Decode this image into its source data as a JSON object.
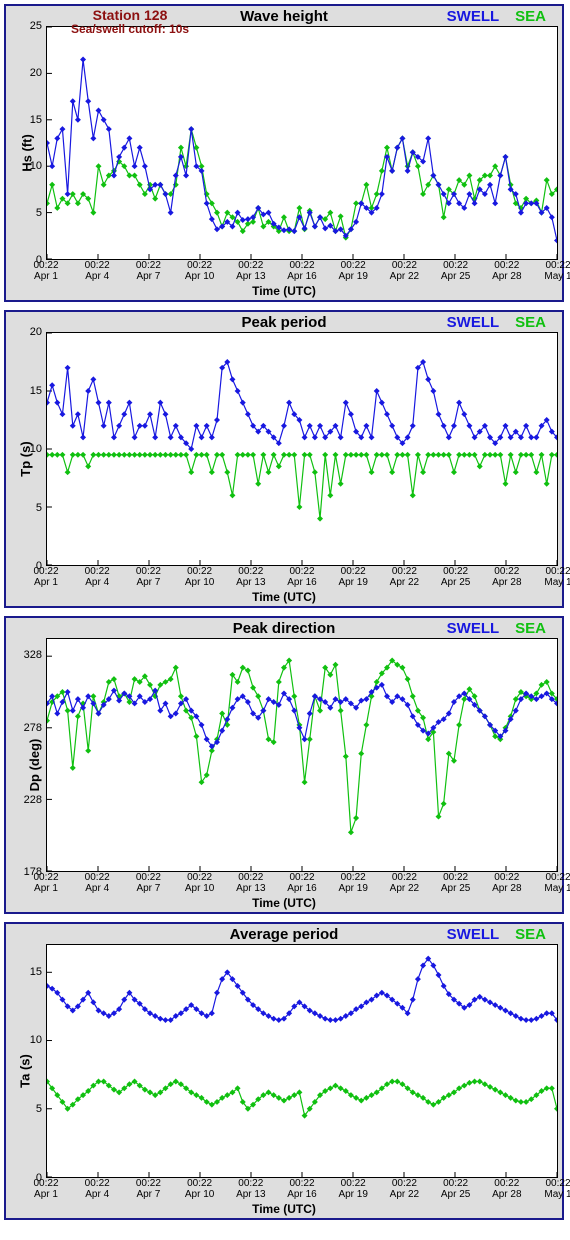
{
  "global": {
    "station_title": "Station 128",
    "station_sub": "Sea/swell cutoff: 10s",
    "legend_swell": "SWELL",
    "legend_sea": "SEA",
    "xlabel": "Time (UTC)",
    "xticks": [
      {
        "t": "00:22",
        "d": "Apr 1"
      },
      {
        "t": "00:22",
        "d": "Apr 4"
      },
      {
        "t": "00:22",
        "d": "Apr 7"
      },
      {
        "t": "00:22",
        "d": "Apr 10"
      },
      {
        "t": "00:22",
        "d": "Apr 13"
      },
      {
        "t": "00:22",
        "d": "Apr 16"
      },
      {
        "t": "00:22",
        "d": "Apr 19"
      },
      {
        "t": "00:22",
        "d": "Apr 22"
      },
      {
        "t": "00:22",
        "d": "Apr 25"
      },
      {
        "t": "00:22",
        "d": "Apr 28"
      },
      {
        "t": "00:22",
        "d": "May 1"
      }
    ],
    "colors": {
      "swell": "#1818e0",
      "sea": "#10c010",
      "panel_bg": "#dedede",
      "plot_bg": "#ffffff",
      "border": "#1a1a8c",
      "text": "#000000",
      "station": "#8c1010"
    },
    "series_style": {
      "marker": "diamond",
      "marker_size": 3,
      "line_width": 1.2
    }
  },
  "panels": [
    {
      "id": "hs",
      "title": "Wave height",
      "ylabel": "Hs (ft)",
      "ylim": [
        0,
        25
      ],
      "yticks": [
        0,
        5,
        10,
        15,
        20,
        25
      ],
      "show_station": true,
      "swell": [
        12.5,
        10,
        13,
        14,
        7,
        17,
        15,
        21.5,
        17,
        13,
        16,
        15,
        14,
        9,
        11,
        12,
        13,
        10,
        12,
        10,
        7.5,
        8,
        8,
        7,
        5,
        9,
        11,
        9,
        14,
        10,
        9.5,
        6,
        4.3,
        3.2,
        3.5,
        4,
        3.5,
        5,
        4.2,
        4.3,
        4.5,
        5.5,
        4.8,
        5,
        3.8,
        3.4,
        3.1,
        3.2,
        3,
        4.5,
        3.3,
        5,
        3.5,
        4.5,
        3.3,
        3.6,
        3,
        3.2,
        2.5,
        3.2,
        4,
        6,
        5.5,
        5,
        5.5,
        7,
        11,
        9.5,
        12,
        13,
        9.5,
        11.5,
        11,
        10.5,
        13,
        9,
        8,
        7,
        6,
        7,
        6,
        5.5,
        7,
        6,
        7.5,
        7,
        8,
        6,
        9,
        11,
        7.5,
        7,
        5,
        6,
        6,
        6,
        5,
        5.5,
        4.5,
        2
      ],
      "sea": [
        6,
        8,
        5.5,
        6.5,
        6,
        7,
        6,
        7,
        6.5,
        5,
        10,
        8,
        9,
        9.5,
        10.5,
        10,
        9,
        9,
        8,
        7,
        8,
        6.5,
        8,
        7,
        7,
        8,
        12,
        10,
        14,
        12,
        10,
        7,
        6,
        5,
        3.5,
        5,
        4.5,
        4,
        3,
        3.8,
        4,
        5.5,
        3.5,
        4,
        3.5,
        3,
        4.5,
        3,
        3,
        5.5,
        3.2,
        5.2,
        3.5,
        4.5,
        4.3,
        5,
        3,
        4.6,
        2.3,
        3.2,
        6,
        6,
        8,
        5.5,
        7,
        9.5,
        12,
        9.5,
        12,
        13,
        10,
        11.5,
        10,
        7,
        8,
        9,
        8,
        4.5,
        7.5,
        7,
        8.5,
        8,
        9,
        6.5,
        8.5,
        9,
        9,
        10,
        9,
        11,
        8,
        6,
        5.5,
        6.5,
        6,
        6.3,
        5,
        8.5,
        7,
        7.5
      ]
    },
    {
      "id": "tp",
      "title": "Peak period",
      "ylabel": "Tp (s)",
      "ylim": [
        0,
        20
      ],
      "yticks": [
        0,
        5,
        10,
        15,
        20
      ],
      "show_station": false,
      "swell": [
        14,
        15.5,
        14,
        13,
        17,
        12,
        13,
        11,
        15,
        16,
        14,
        12,
        14,
        11,
        12,
        13,
        14,
        11,
        12,
        12,
        13,
        11,
        14,
        13,
        11,
        12,
        11,
        10.5,
        10,
        12,
        11,
        12,
        11,
        12.5,
        17,
        17.5,
        16,
        15,
        14,
        13,
        12,
        11.5,
        12,
        11.5,
        11,
        10.5,
        12,
        14,
        13,
        12.5,
        11,
        12,
        11,
        12,
        11,
        11.5,
        12,
        11,
        14,
        13,
        11.5,
        11,
        12,
        11,
        15,
        14,
        13,
        12,
        11,
        10.5,
        11,
        12,
        17,
        17.5,
        16,
        15,
        13,
        12,
        11,
        12,
        14,
        13,
        12,
        11,
        11.5,
        12,
        11,
        10.5,
        11,
        12,
        11,
        11.5,
        11,
        12,
        11,
        11,
        12,
        12.5,
        11.5,
        11
      ],
      "sea": [
        9.5,
        9.5,
        9.5,
        9.5,
        8,
        9.5,
        9.5,
        9.5,
        8.5,
        9.5,
        9.5,
        9.5,
        9.5,
        9.5,
        9.5,
        9.5,
        9.5,
        9.5,
        9.5,
        9.5,
        9.5,
        9.5,
        9.5,
        9.5,
        9.5,
        9.5,
        9.5,
        9.5,
        8,
        9.5,
        9.5,
        9.5,
        8,
        9.5,
        9.5,
        8,
        6,
        9.5,
        9.5,
        9.5,
        9.5,
        7,
        9.5,
        8,
        9.5,
        8.5,
        9.5,
        9.5,
        9.5,
        5,
        9.5,
        9.5,
        8,
        4,
        9.5,
        6,
        9.5,
        7,
        9.5,
        9.5,
        9.5,
        9.5,
        9.5,
        8,
        9.5,
        9.5,
        9.5,
        8,
        9.5,
        9.5,
        9.5,
        6,
        9.5,
        8,
        9.5,
        9.5,
        9.5,
        9.5,
        9.5,
        8,
        9.5,
        9.5,
        9.5,
        9.5,
        8.5,
        9.5,
        9.5,
        9.5,
        9.5,
        7,
        9.5,
        8,
        9.5,
        9.5,
        9.5,
        8,
        9.5,
        7,
        9.5,
        9.5
      ]
    },
    {
      "id": "dp",
      "title": "Peak direction",
      "ylabel": "Dp (deg)",
      "ylim": [
        178,
        340
      ],
      "yticks": [
        178,
        228,
        278,
        328
      ],
      "show_station": false,
      "swell": [
        295,
        300,
        288,
        296,
        303,
        290,
        298,
        292,
        300,
        295,
        288,
        294,
        298,
        304,
        297,
        302,
        300,
        295,
        300,
        296,
        298,
        304,
        290,
        295,
        286,
        288,
        295,
        298,
        290,
        286,
        280,
        270,
        265,
        268,
        276,
        284,
        292,
        298,
        300,
        296,
        288,
        285,
        290,
        298,
        296,
        294,
        302,
        298,
        290,
        278,
        270,
        288,
        300,
        298,
        296,
        292,
        298,
        296,
        298,
        295,
        292,
        297,
        298,
        303,
        306,
        308,
        300,
        296,
        300,
        298,
        294,
        286,
        280,
        276,
        274,
        278,
        282,
        284,
        288,
        296,
        300,
        302,
        298,
        294,
        290,
        286,
        280,
        276,
        272,
        276,
        284,
        290,
        298,
        302,
        300,
        298,
        300,
        302,
        298,
        295
      ],
      "sea": [
        283,
        296,
        300,
        303,
        290,
        250,
        286,
        295,
        262,
        300,
        288,
        296,
        310,
        312,
        300,
        302,
        296,
        312,
        310,
        314,
        308,
        300,
        308,
        310,
        312,
        320,
        300,
        290,
        285,
        272,
        240,
        245,
        262,
        270,
        288,
        280,
        315,
        310,
        320,
        318,
        306,
        300,
        290,
        270,
        268,
        310,
        320,
        325,
        300,
        280,
        240,
        270,
        300,
        290,
        320,
        315,
        322,
        290,
        258,
        205,
        215,
        260,
        280,
        300,
        310,
        316,
        320,
        325,
        322,
        320,
        312,
        300,
        290,
        285,
        270,
        275,
        216,
        225,
        260,
        255,
        280,
        298,
        305,
        300,
        290,
        286,
        280,
        272,
        270,
        278,
        286,
        298,
        303,
        300,
        298,
        302,
        308,
        310,
        302,
        298
      ]
    },
    {
      "id": "ta",
      "title": "Average period",
      "ylabel": "Ta (s)",
      "ylim": [
        0,
        17
      ],
      "yticks": [
        0,
        5,
        10,
        15
      ],
      "show_station": false,
      "swell": [
        14,
        13.8,
        13.5,
        13,
        12.5,
        12.2,
        12.5,
        13,
        13.5,
        12.8,
        12.2,
        12,
        11.8,
        12,
        12.3,
        13,
        13.5,
        13,
        12.7,
        12.3,
        12,
        11.8,
        11.6,
        11.5,
        11.5,
        11.8,
        12,
        12.3,
        12.6,
        12.3,
        12,
        11.8,
        12,
        13.5,
        14.5,
        15,
        14.5,
        14,
        13.5,
        13,
        12.6,
        12.3,
        12,
        11.8,
        11.6,
        11.5,
        11.6,
        12,
        12.5,
        12.8,
        12.5,
        12.2,
        12,
        11.8,
        11.6,
        11.5,
        11.5,
        11.6,
        11.8,
        12,
        12.3,
        12.5,
        12.8,
        13,
        13.3,
        13.5,
        13.3,
        13,
        12.7,
        12.4,
        12,
        13,
        14.5,
        15.5,
        16,
        15.5,
        14.8,
        14,
        13.4,
        13,
        12.7,
        12.4,
        12.6,
        13,
        13.2,
        13,
        12.8,
        12.6,
        12.4,
        12.2,
        12,
        11.8,
        11.6,
        11.5,
        11.5,
        11.6,
        11.8,
        12,
        12,
        11.5
      ],
      "sea": [
        7,
        6.5,
        6,
        5.5,
        5,
        5.3,
        5.7,
        6,
        6.3,
        6.7,
        7,
        7,
        6.7,
        6.4,
        6.2,
        6.5,
        6.8,
        7,
        6.7,
        6.4,
        6.2,
        6,
        6.2,
        6.5,
        6.8,
        7,
        6.8,
        6.5,
        6.2,
        6,
        5.8,
        5.5,
        5.3,
        5.5,
        5.8,
        6,
        6.2,
        6.5,
        5.5,
        5,
        5.3,
        5.7,
        6,
        6.2,
        6,
        5.8,
        5.6,
        5.8,
        6,
        6.2,
        4.5,
        5,
        5.5,
        6,
        6.3,
        6.5,
        6.7,
        6.5,
        6.3,
        6,
        5.8,
        5.6,
        5.8,
        6,
        6.2,
        6.5,
        6.8,
        7,
        7,
        6.8,
        6.5,
        6.2,
        6,
        5.8,
        5.5,
        5.3,
        5.5,
        5.8,
        6,
        6.2,
        6.5,
        6.7,
        6.9,
        7,
        7,
        6.8,
        6.6,
        6.4,
        6.2,
        6,
        5.8,
        5.6,
        5.5,
        5.5,
        5.7,
        6,
        6.3,
        6.5,
        6.5,
        5
      ]
    }
  ]
}
